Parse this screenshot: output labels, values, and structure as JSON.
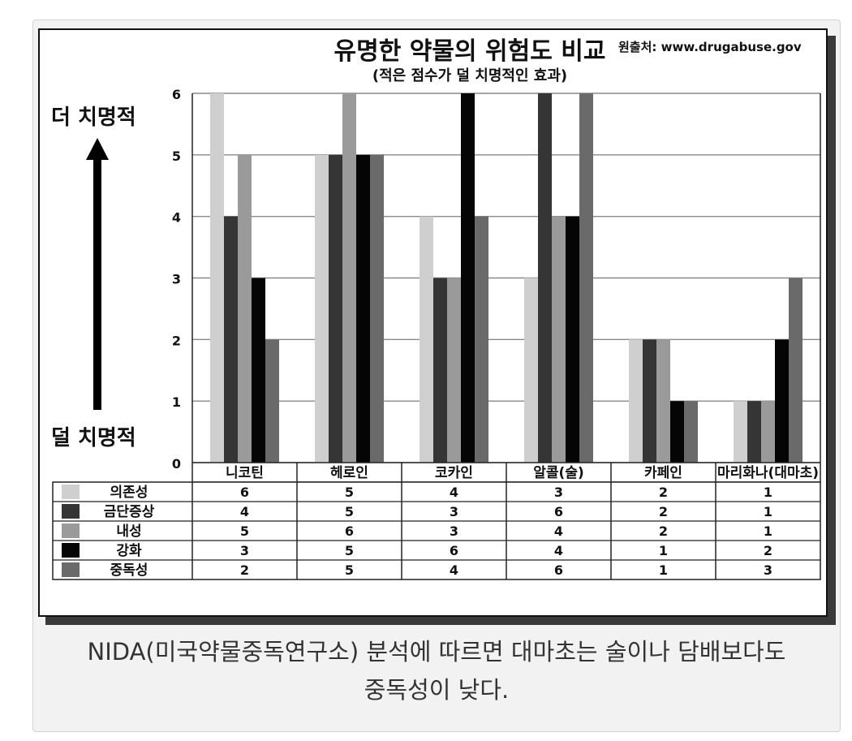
{
  "figure": {
    "title": "유명한 약물의 위험도 비교",
    "subtitle": "(적은 점수가 덜 치명적인 효과)",
    "source": "원출처: www.drugabuse.gov",
    "more_deadly_label": "더 치명적",
    "less_deadly_label": "덜 치명적"
  },
  "caption": {
    "line1": "NIDA(미국약물중독연구소) 분석에 따르면 대마초는 술이나 담배보다도",
    "line2": "중독성이 낮다."
  },
  "chart_data": {
    "type": "bar",
    "title": "유명한 약물의 위험도 비교",
    "subtitle": "(적은 점수가 덜 치명적인 효과)",
    "categories": [
      "니코틴",
      "헤로인",
      "코카인",
      "알콜(술)",
      "카페인",
      "마리화나(대마초)"
    ],
    "series": [
      {
        "name": "의존성",
        "values": [
          6,
          5,
          4,
          3,
          2,
          1
        ],
        "color": "#cfcfcf"
      },
      {
        "name": "금단증상",
        "values": [
          4,
          5,
          3,
          6,
          2,
          1
        ],
        "color": "#353535"
      },
      {
        "name": "내성",
        "values": [
          5,
          6,
          3,
          4,
          2,
          1
        ],
        "color": "#9a9a9a"
      },
      {
        "name": "강화",
        "values": [
          3,
          5,
          6,
          4,
          1,
          2
        ],
        "color": "#050505"
      },
      {
        "name": "중독성",
        "values": [
          2,
          5,
          4,
          6,
          1,
          3
        ],
        "color": "#6a6a6a"
      }
    ],
    "y_ticks": [
      "0",
      "1",
      "2",
      "3",
      "4",
      "5",
      "6"
    ],
    "ylim": [
      0,
      6
    ],
    "grid": true,
    "legend": "table-below"
  }
}
